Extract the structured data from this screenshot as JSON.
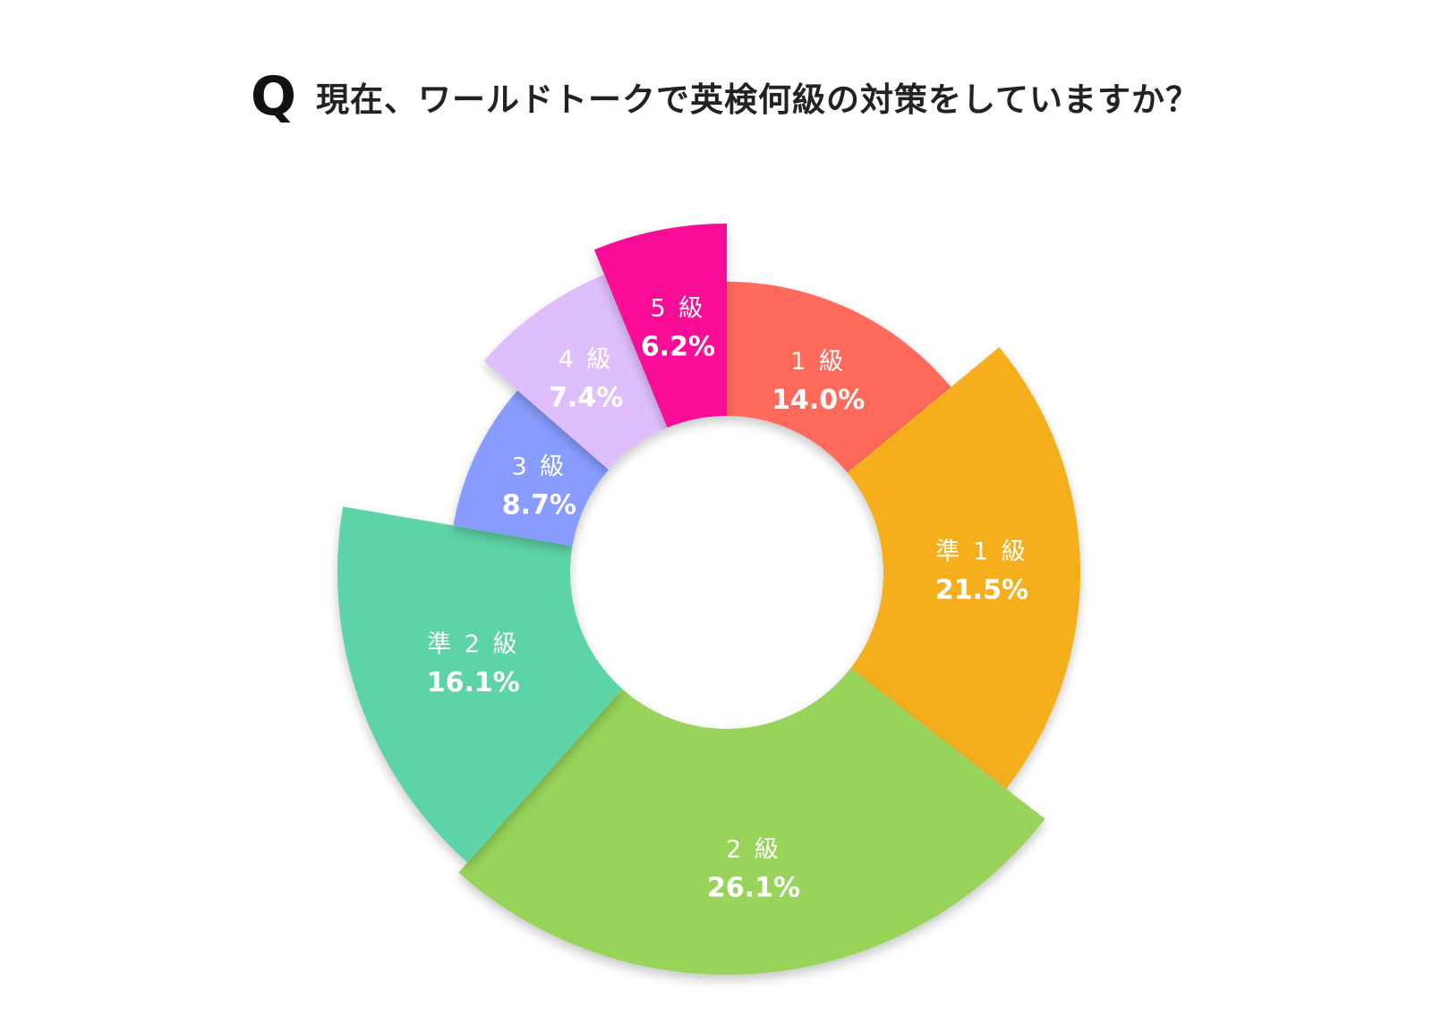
{
  "header": {
    "q_mark": "Q",
    "title": "現在、ワールドトークで英検何級の対策をしていますか？"
  },
  "chart_data": {
    "type": "pie",
    "donut": true,
    "legend": "none",
    "slices": [
      {
        "label": "1 級",
        "value": 14.0,
        "display": "14.0%",
        "color": "#FF6A5A"
      },
      {
        "label": "準 1 級",
        "value": 21.5,
        "display": "21.5%",
        "color": "#F5AF1A"
      },
      {
        "label": "2 級",
        "value": 26.1,
        "display": "26.1%",
        "color": "#98D35A"
      },
      {
        "label": "準 2 級",
        "value": 16.1,
        "display": "16.1%",
        "color": "#5DD4A6"
      },
      {
        "label": "3 級",
        "value": 8.7,
        "display": "8.7%",
        "color": "#879CFE"
      },
      {
        "label": "4 級",
        "value": 7.4,
        "display": "7.4%",
        "color": "#DFBEFC"
      },
      {
        "label": "5 級",
        "value": 6.2,
        "display": "6.2%",
        "color": "#FA0796"
      }
    ]
  }
}
